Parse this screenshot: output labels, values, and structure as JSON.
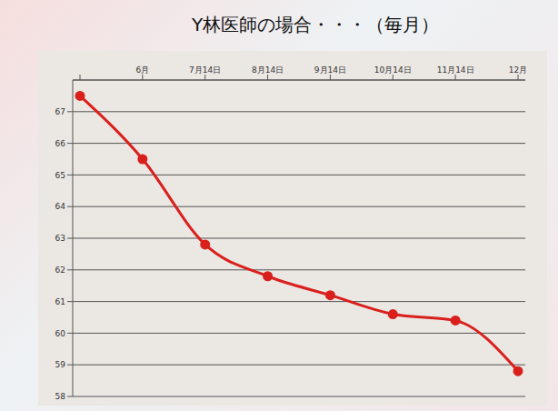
{
  "chart_data": {
    "type": "line",
    "title": "Y林医師の場合・・・（毎月）",
    "categories": [
      null,
      "6月",
      "7月14日",
      "8月14日",
      "9月14日",
      "10月14日",
      "11月14日",
      "12月"
    ],
    "values": [
      67.5,
      65.5,
      62.8,
      61.8,
      61.2,
      60.6,
      60.4,
      58.8
    ],
    "color": "#d9201c",
    "ylim": [
      58,
      68
    ],
    "yticks": [
      58,
      59,
      60,
      61,
      62,
      63,
      64,
      65,
      66,
      67
    ],
    "grid": true,
    "marker": "circle",
    "line_style": "solid"
  }
}
